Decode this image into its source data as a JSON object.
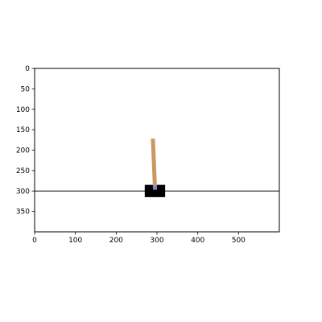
{
  "chart_data": {
    "type": "scatter",
    "title": "",
    "xlabel": "",
    "ylabel": "",
    "xlim": [
      0,
      600
    ],
    "ylim": [
      400,
      0
    ],
    "x_ticks": [
      "0",
      "100",
      "200",
      "300",
      "400",
      "500"
    ],
    "y_ticks": [
      "0",
      "50",
      "100",
      "150",
      "200",
      "250",
      "300",
      "350"
    ],
    "grid": false,
    "scene": {
      "track_y": 300,
      "cart": {
        "x_min": 270,
        "x_max": 320,
        "y_min": 285,
        "y_max": 315
      },
      "pole": {
        "x_base": 295,
        "y_base": 292,
        "x_top": 290,
        "y_top": 172
      },
      "axle": {
        "x": 295,
        "y": 292
      }
    }
  },
  "colors": {
    "background": "#ffffff",
    "axes_frame": "#000000",
    "track": "#000000",
    "cart": "#000000",
    "pole": "#ca9865",
    "axle": "#8184cb"
  }
}
